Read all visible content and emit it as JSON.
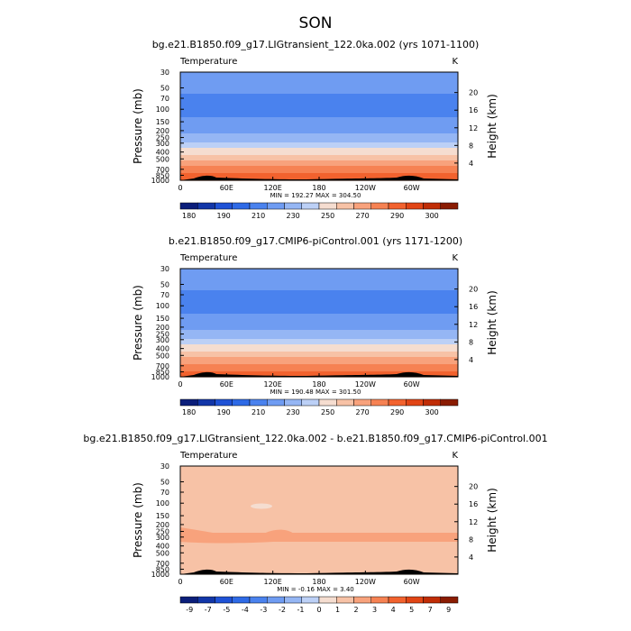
{
  "figure": {
    "title": "SON"
  },
  "chart_data": [
    {
      "type": "heatmap",
      "title": "bg.e21.B1850.f09_g17.LIGtransient_122.0ka.002 (yrs 1071-1100)",
      "variable": "Temperature",
      "units": "K",
      "ylabel": "Pressure (mb)",
      "ylabel_right": "Height (km)",
      "x_ticks": [
        "0",
        "60E",
        "120E",
        "180",
        "120W",
        "60W"
      ],
      "y_ticks": [
        "30",
        "50",
        "70",
        "100",
        "150",
        "200",
        "250",
        "300",
        "400",
        "500",
        "700",
        "850",
        "1000"
      ],
      "height_ticks": [
        "20",
        "16",
        "12",
        "8",
        "4"
      ],
      "y_scale": "log",
      "stats": "MIN = 192.27   MAX = 304.50",
      "min": 192.27,
      "max": 304.5,
      "colorbar_labels": [
        "180",
        "190",
        "210",
        "230",
        "250",
        "270",
        "290",
        "300"
      ],
      "colors": [
        "#0b1e7a",
        "#1236a8",
        "#1f52d6",
        "#2e6ae6",
        "#4a82ee",
        "#6f9cf2",
        "#95b6f4",
        "#bcd0f6",
        "#f5ddd0",
        "#f7c2a6",
        "#f8a27c",
        "#f68253",
        "#f2622e",
        "#e14515",
        "#c02d06",
        "#8a1c02"
      ],
      "profile_levels": [
        {
          "p": 30,
          "v": 212
        },
        {
          "p": 50,
          "v": 211
        },
        {
          "p": 70,
          "v": 209
        },
        {
          "p": 100,
          "v": 206
        },
        {
          "p": 150,
          "v": 212
        },
        {
          "p": 200,
          "v": 218
        },
        {
          "p": 250,
          "v": 224
        },
        {
          "p": 300,
          "v": 232
        },
        {
          "p": 400,
          "v": 246
        },
        {
          "p": 500,
          "v": 258
        },
        {
          "p": 700,
          "v": 274
        },
        {
          "p": 850,
          "v": 282
        },
        {
          "p": 1000,
          "v": 290
        }
      ]
    },
    {
      "type": "heatmap",
      "title": "b.e21.B1850.f09_g17.CMIP6-piControl.001 (yrs 1171-1200)",
      "variable": "Temperature",
      "units": "K",
      "ylabel": "Pressure (mb)",
      "ylabel_right": "Height (km)",
      "x_ticks": [
        "0",
        "60E",
        "120E",
        "180",
        "120W",
        "60W"
      ],
      "y_ticks": [
        "30",
        "50",
        "70",
        "100",
        "150",
        "200",
        "250",
        "300",
        "400",
        "500",
        "700",
        "850",
        "1000"
      ],
      "height_ticks": [
        "20",
        "16",
        "12",
        "8",
        "4"
      ],
      "y_scale": "log",
      "stats": "MIN = 190.48   MAX = 301.50",
      "min": 190.48,
      "max": 301.5,
      "colorbar_labels": [
        "180",
        "190",
        "210",
        "230",
        "250",
        "270",
        "290",
        "300"
      ],
      "colors": [
        "#0b1e7a",
        "#1236a8",
        "#1f52d6",
        "#2e6ae6",
        "#4a82ee",
        "#6f9cf2",
        "#95b6f4",
        "#bcd0f6",
        "#f5ddd0",
        "#f7c2a6",
        "#f8a27c",
        "#f68253",
        "#f2622e",
        "#e14515",
        "#c02d06",
        "#8a1c02"
      ],
      "profile_levels": [
        {
          "p": 30,
          "v": 212
        },
        {
          "p": 50,
          "v": 211
        },
        {
          "p": 70,
          "v": 209
        },
        {
          "p": 100,
          "v": 206
        },
        {
          "p": 150,
          "v": 212
        },
        {
          "p": 200,
          "v": 218
        },
        {
          "p": 250,
          "v": 224
        },
        {
          "p": 300,
          "v": 232
        },
        {
          "p": 400,
          "v": 246
        },
        {
          "p": 500,
          "v": 257
        },
        {
          "p": 700,
          "v": 272
        },
        {
          "p": 850,
          "v": 280
        },
        {
          "p": 1000,
          "v": 288
        }
      ]
    },
    {
      "type": "heatmap",
      "title": "bg.e21.B1850.f09_g17.LIGtransient_122.0ka.002 - b.e21.B1850.f09_g17.CMIP6-piControl.001",
      "variable": "Temperature",
      "units": "K",
      "ylabel": "Pressure (mb)",
      "ylabel_right": "Height (km)",
      "x_ticks": [
        "0",
        "60E",
        "120E",
        "180",
        "120W",
        "60W"
      ],
      "y_ticks": [
        "30",
        "50",
        "70",
        "100",
        "150",
        "200",
        "250",
        "300",
        "400",
        "500",
        "700",
        "850",
        "1000"
      ],
      "height_ticks": [
        "20",
        "16",
        "12",
        "8",
        "4"
      ],
      "y_scale": "log",
      "stats": "MIN =   -0.16   MAX =     3.40",
      "min": -0.16,
      "max": 3.4,
      "colorbar_labels": [
        "-9",
        "-7",
        "-5",
        "-4",
        "-3",
        "-2",
        "-1",
        "0",
        "1",
        "2",
        "3",
        "4",
        "5",
        "7",
        "9"
      ],
      "colors": [
        "#0b1e7a",
        "#1236a8",
        "#1f52d6",
        "#2e6ae6",
        "#4a82ee",
        "#6f9cf2",
        "#95b6f4",
        "#bcd0f6",
        "#f5ddd0",
        "#f7c2a6",
        "#f8a27c",
        "#f68253",
        "#f2622e",
        "#e14515",
        "#c02d06",
        "#8a1c02"
      ],
      "profile_levels": [
        {
          "p": 30,
          "v": 1.5
        },
        {
          "p": 100,
          "v": 1.5
        },
        {
          "p": 200,
          "v": 1.5
        },
        {
          "p": 300,
          "v": 2.2
        },
        {
          "p": 500,
          "v": 1.5
        },
        {
          "p": 850,
          "v": 1.6
        },
        {
          "p": 1000,
          "v": 1.6
        }
      ]
    }
  ]
}
